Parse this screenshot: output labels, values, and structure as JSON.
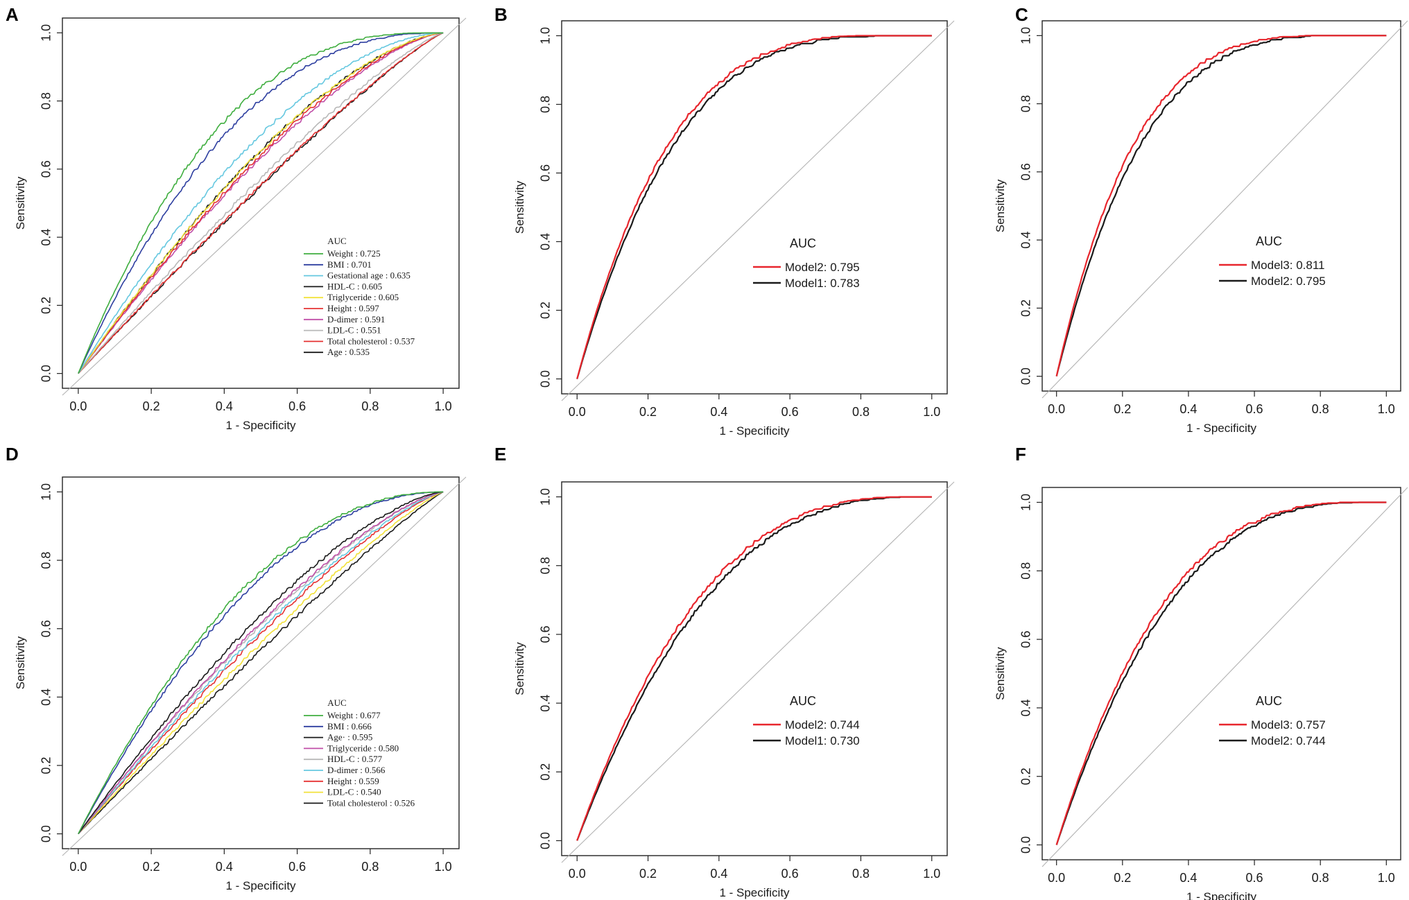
{
  "figure": {
    "panels": [
      {
        "letter": "A",
        "chart_data": {
          "type": "line",
          "title": "",
          "xlabel": "1 - Specificity",
          "ylabel": "Sensitivity",
          "xlim": [
            0,
            1
          ],
          "ylim": [
            0,
            1
          ],
          "xticks": [
            "0.0",
            "0.2",
            "0.4",
            "0.6",
            "0.8",
            "1.0"
          ],
          "yticks": [
            "0.0",
            "0.2",
            "0.4",
            "0.6",
            "0.8",
            "1.0"
          ],
          "grid": false,
          "legend_position": "bottom-right",
          "legend_title": "AUC",
          "legend_style": "serif",
          "reference_line": "diagonal",
          "series": [
            {
              "name": "Weight",
              "label": "Weight : 0.725",
              "auc": 0.725,
              "color": "#3fae3f"
            },
            {
              "name": "BMI",
              "label": "BMI  : 0.701",
              "auc": 0.701,
              "color": "#2e3fa0"
            },
            {
              "name": "Gestational age",
              "label": "Gestational age : 0.635",
              "auc": 0.635,
              "color": "#66c8e0"
            },
            {
              "name": "HDL-C",
              "label": "HDL-C  : 0.605",
              "auc": 0.605,
              "color": "#1a1a1a"
            },
            {
              "name": "Triglyceride",
              "label": "Triglyceride  : 0.605",
              "auc": 0.605,
              "color": "#f2e23a"
            },
            {
              "name": "Height",
              "label": "Height    : 0.597",
              "auc": 0.597,
              "color": "#e53232"
            },
            {
              "name": "D-dimer",
              "label": "D-dimer  : 0.591",
              "auc": 0.591,
              "color": "#c04fa8"
            },
            {
              "name": "LDL-C",
              "label": "LDL-C   : 0.551",
              "auc": 0.551,
              "color": "#b8b8b8"
            },
            {
              "name": "Total cholesterol",
              "label": "Total cholesterol  : 0.537",
              "auc": 0.537,
              "color": "#e53232"
            },
            {
              "name": "Age",
              "label": "Age  : 0.535",
              "auc": 0.535,
              "color": "#1a1a1a"
            }
          ]
        }
      },
      {
        "letter": "B",
        "chart_data": {
          "type": "line",
          "title": "",
          "xlabel": "1 - Specificity",
          "ylabel": "Sensitivity",
          "xlim": [
            0,
            1
          ],
          "ylim": [
            0,
            1
          ],
          "xticks": [
            "0.0",
            "0.2",
            "0.4",
            "0.6",
            "0.8",
            "1.0"
          ],
          "yticks": [
            "0.0",
            "0.2",
            "0.4",
            "0.6",
            "0.8",
            "1.0"
          ],
          "grid": false,
          "legend_position": "center-right",
          "legend_title": "AUC",
          "legend_style": "sans",
          "reference_line": "diagonal",
          "series": [
            {
              "name": "Model1",
              "label": "Model1: 0.783",
              "auc": 0.783,
              "color": "#1a1a1a"
            },
            {
              "name": "Model2",
              "label": "Model2: 0.795",
              "auc": 0.795,
              "color": "#e8262d"
            }
          ],
          "legend_order": [
            "Model2",
            "Model1"
          ]
        }
      },
      {
        "letter": "C",
        "chart_data": {
          "type": "line",
          "title": "",
          "xlabel": "1 - Specificity",
          "ylabel": "Sensitivity",
          "xlim": [
            0,
            1
          ],
          "ylim": [
            0,
            1
          ],
          "xticks": [
            "0.0",
            "0.2",
            "0.4",
            "0.6",
            "0.8",
            "1.0"
          ],
          "yticks": [
            "0.0",
            "0.2",
            "0.4",
            "0.6",
            "0.8",
            "1.0"
          ],
          "grid": false,
          "legend_position": "center-right",
          "legend_title": "AUC",
          "legend_style": "sans",
          "reference_line": "diagonal",
          "series": [
            {
              "name": "Model2",
              "label": "Model2: 0.795",
              "auc": 0.795,
              "color": "#1a1a1a"
            },
            {
              "name": "Model3",
              "label": "Model3: 0.811",
              "auc": 0.811,
              "color": "#e8262d"
            }
          ],
          "legend_order": [
            "Model3",
            "Model2"
          ]
        }
      },
      {
        "letter": "D",
        "chart_data": {
          "type": "line",
          "title": "",
          "xlabel": "1 - Specificity",
          "ylabel": "Sensitivity",
          "xlim": [
            0,
            1
          ],
          "ylim": [
            0,
            1
          ],
          "xticks": [
            "0.0",
            "0.2",
            "0.4",
            "0.6",
            "0.8",
            "1.0"
          ],
          "yticks": [
            "0.0",
            "0.2",
            "0.4",
            "0.6",
            "0.8",
            "1.0"
          ],
          "grid": false,
          "legend_position": "bottom-right",
          "legend_title": "AUC",
          "legend_style": "serif",
          "reference_line": "diagonal",
          "series": [
            {
              "name": "Weight",
              "label": "Weight : 0.677",
              "auc": 0.677,
              "color": "#3fae3f"
            },
            {
              "name": "BMI",
              "label": "BMI  : 0.666",
              "auc": 0.666,
              "color": "#2e3fa0"
            },
            {
              "name": "Age",
              "label": "Age·    : 0.595",
              "auc": 0.595,
              "color": "#1a1a1a"
            },
            {
              "name": "Triglyceride",
              "label": "Triglyceride  : 0.580",
              "auc": 0.58,
              "color": "#c04fa8"
            },
            {
              "name": "HDL-C",
              "label": "HDL-C   : 0.577",
              "auc": 0.577,
              "color": "#b8b8b8"
            },
            {
              "name": "D-dimer",
              "label": "D-dimer : 0.566",
              "auc": 0.566,
              "color": "#66c8e0"
            },
            {
              "name": "Height",
              "label": "Height       : 0.559",
              "auc": 0.559,
              "color": "#e53232"
            },
            {
              "name": "LDL-C",
              "label": "LDL-C    : 0.540",
              "auc": 0.54,
              "color": "#f2e23a"
            },
            {
              "name": "Total cholesterol",
              "label": "Total cholesterol  : 0.526",
              "auc": 0.526,
              "color": "#1a1a1a"
            }
          ]
        }
      },
      {
        "letter": "E",
        "chart_data": {
          "type": "line",
          "title": "",
          "xlabel": "1 - Specificity",
          "ylabel": "Sensitivity",
          "xlim": [
            0,
            1
          ],
          "ylim": [
            0,
            1
          ],
          "xticks": [
            "0.0",
            "0.2",
            "0.4",
            "0.6",
            "0.8",
            "1.0"
          ],
          "yticks": [
            "0.0",
            "0.2",
            "0.4",
            "0.6",
            "0.8",
            "1.0"
          ],
          "grid": false,
          "legend_position": "center-right",
          "legend_title": "AUC",
          "legend_style": "sans",
          "reference_line": "diagonal",
          "series": [
            {
              "name": "Model1",
              "label": "Model1: 0.730",
              "auc": 0.73,
              "color": "#1a1a1a"
            },
            {
              "name": "Model2",
              "label": "Model2: 0.744",
              "auc": 0.744,
              "color": "#e8262d"
            }
          ],
          "legend_order": [
            "Model2",
            "Model1"
          ]
        }
      },
      {
        "letter": "F",
        "chart_data": {
          "type": "line",
          "title": "",
          "xlabel": "1 - Specificity",
          "ylabel": "Sensitivity",
          "xlim": [
            0,
            1
          ],
          "ylim": [
            0,
            1
          ],
          "xticks": [
            "0.0",
            "0.2",
            "0.4",
            "0.6",
            "0.8",
            "1.0"
          ],
          "yticks": [
            "0.0",
            "0.2",
            "0.4",
            "0.6",
            "0.8",
            "1.0"
          ],
          "grid": false,
          "legend_position": "center-right",
          "legend_title": "AUC",
          "legend_style": "sans",
          "reference_line": "diagonal",
          "series": [
            {
              "name": "Model2",
              "label": "Model2: 0.744",
              "auc": 0.744,
              "color": "#1a1a1a"
            },
            {
              "name": "Model3",
              "label": "Model3: 0.757",
              "auc": 0.757,
              "color": "#e8262d"
            }
          ],
          "legend_order": [
            "Model3",
            "Model2"
          ]
        }
      }
    ]
  }
}
